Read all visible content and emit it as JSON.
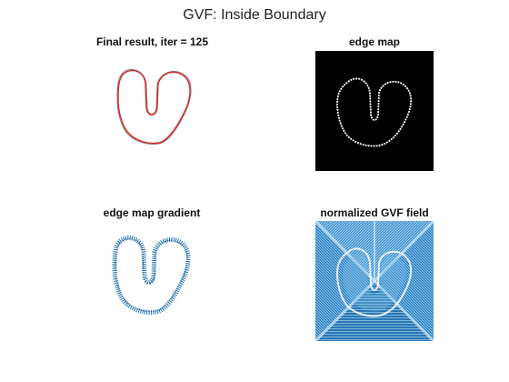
{
  "figure": {
    "title": "GVF: Inside Boundary"
  },
  "panels": [
    {
      "title": "Final result,  iter = 125",
      "content": "snake contour (red) over boundary curve"
    },
    {
      "title": "edge map",
      "content": "white boundary on black background"
    },
    {
      "title": "edge map gradient",
      "content": "gradient vectors along boundary"
    },
    {
      "title": "normalized GVF field",
      "content": "dense normalized vector field"
    }
  ],
  "colors": {
    "background": "#ffffff",
    "snake": "#d62728",
    "edge": "#ffffff",
    "edge_map_bg": "#000000",
    "quiver": "#1f77b4",
    "boundary_gray": "#888888"
  }
}
